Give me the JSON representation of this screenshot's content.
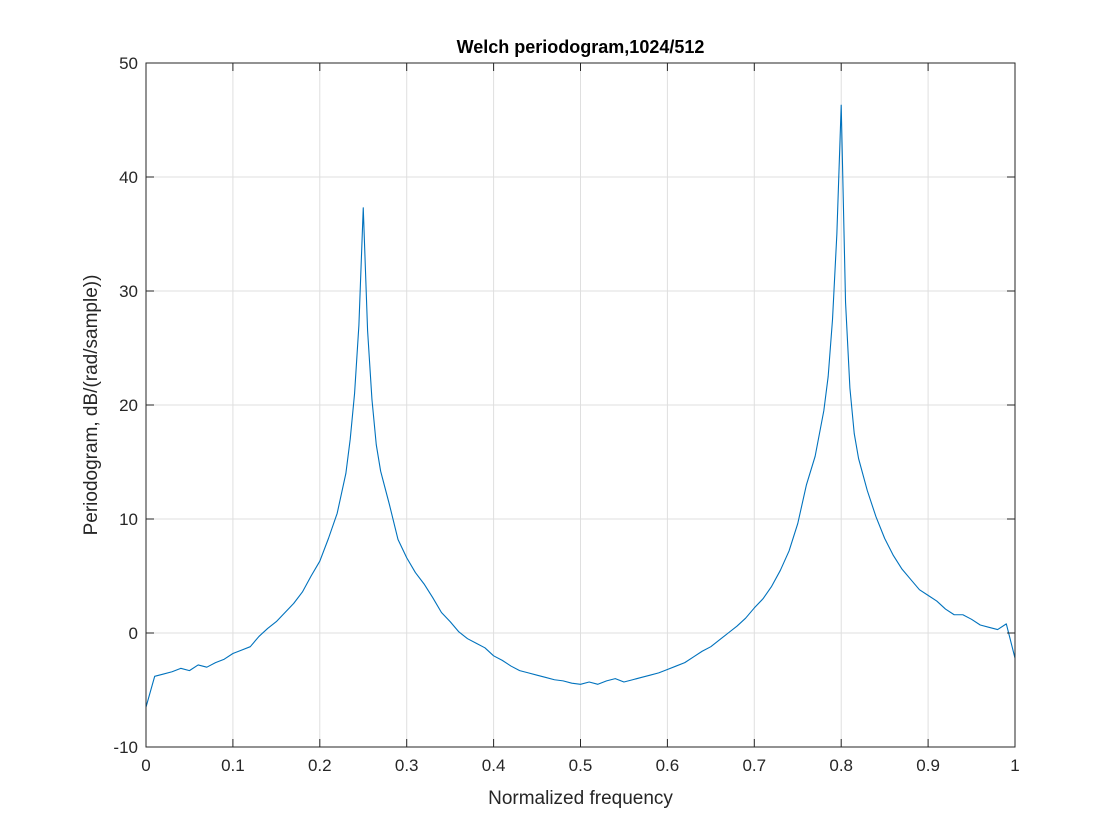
{
  "chart_data": {
    "type": "line",
    "title": "Welch periodogram,1024/512",
    "xlabel": "Normalized frequency",
    "ylabel": "Periodogram, dB/(rad/sample))",
    "xlim": [
      0,
      1
    ],
    "ylim": [
      -10,
      50
    ],
    "xticks": [
      0,
      0.1,
      0.2,
      0.3,
      0.4,
      0.5,
      0.6,
      0.7,
      0.8,
      0.9,
      1
    ],
    "xtick_labels": [
      "0",
      "0.1",
      "0.2",
      "0.3",
      "0.4",
      "0.5",
      "0.6",
      "0.7",
      "0.8",
      "0.9",
      "1"
    ],
    "yticks": [
      -10,
      0,
      10,
      20,
      30,
      40,
      50
    ],
    "ytick_labels": [
      "-10",
      "0",
      "10",
      "20",
      "30",
      "40",
      "50"
    ],
    "grid": true,
    "line_color": "#0072bd",
    "series": [
      {
        "x": [
          0,
          0.01,
          0.02,
          0.03,
          0.04,
          0.05,
          0.06,
          0.07,
          0.08,
          0.09,
          0.1,
          0.11,
          0.12,
          0.13,
          0.14,
          0.15,
          0.16,
          0.17,
          0.18,
          0.19,
          0.2,
          0.21,
          0.22,
          0.23,
          0.235,
          0.24,
          0.245,
          0.25,
          0.255,
          0.26,
          0.265,
          0.27,
          0.28,
          0.29,
          0.3,
          0.31,
          0.32,
          0.33,
          0.34,
          0.35,
          0.36,
          0.37,
          0.38,
          0.39,
          0.4,
          0.41,
          0.42,
          0.43,
          0.44,
          0.45,
          0.46,
          0.47,
          0.48,
          0.49,
          0.5,
          0.51,
          0.52,
          0.53,
          0.54,
          0.55,
          0.56,
          0.57,
          0.58,
          0.59,
          0.6,
          0.61,
          0.62,
          0.63,
          0.64,
          0.65,
          0.66,
          0.67,
          0.68,
          0.69,
          0.7,
          0.71,
          0.72,
          0.73,
          0.74,
          0.75,
          0.76,
          0.77,
          0.78,
          0.785,
          0.79,
          0.795,
          0.8,
          0.805,
          0.81,
          0.815,
          0.82,
          0.83,
          0.84,
          0.85,
          0.86,
          0.87,
          0.88,
          0.89,
          0.9,
          0.91,
          0.92,
          0.93,
          0.94,
          0.95,
          0.96,
          0.97,
          0.98,
          0.99,
          1
        ],
        "y": [
          -6.5,
          -3.8,
          -3.6,
          -3.4,
          -3.1,
          -3.3,
          -2.8,
          -3.0,
          -2.6,
          -2.3,
          -1.8,
          -1.5,
          -1.2,
          -0.3,
          0.4,
          1.0,
          1.8,
          2.6,
          3.6,
          5.0,
          6.3,
          8.3,
          10.5,
          14.0,
          17.0,
          21.0,
          27.0,
          37.3,
          26.5,
          20.5,
          16.5,
          14.2,
          11.3,
          8.2,
          6.6,
          5.3,
          4.3,
          3.1,
          1.8,
          1.0,
          0.1,
          -0.5,
          -0.9,
          -1.3,
          -2.0,
          -2.4,
          -2.9,
          -3.3,
          -3.5,
          -3.7,
          -3.9,
          -4.1,
          -4.2,
          -4.4,
          -4.5,
          -4.3,
          -4.5,
          -4.2,
          -4.0,
          -4.3,
          -4.1,
          -3.9,
          -3.7,
          -3.5,
          -3.2,
          -2.9,
          -2.6,
          -2.1,
          -1.6,
          -1.2,
          -0.6,
          0.0,
          0.6,
          1.3,
          2.2,
          3.0,
          4.1,
          5.5,
          7.2,
          9.6,
          13.0,
          15.5,
          19.5,
          22.5,
          27.5,
          35.0,
          46.3,
          29.0,
          21.5,
          17.5,
          15.3,
          12.5,
          10.2,
          8.3,
          6.8,
          5.6,
          4.7,
          3.8,
          3.3,
          2.8,
          2.1,
          1.6,
          1.6,
          1.2,
          0.7,
          0.5,
          0.3,
          0.8,
          -2.2
        ]
      }
    ]
  }
}
